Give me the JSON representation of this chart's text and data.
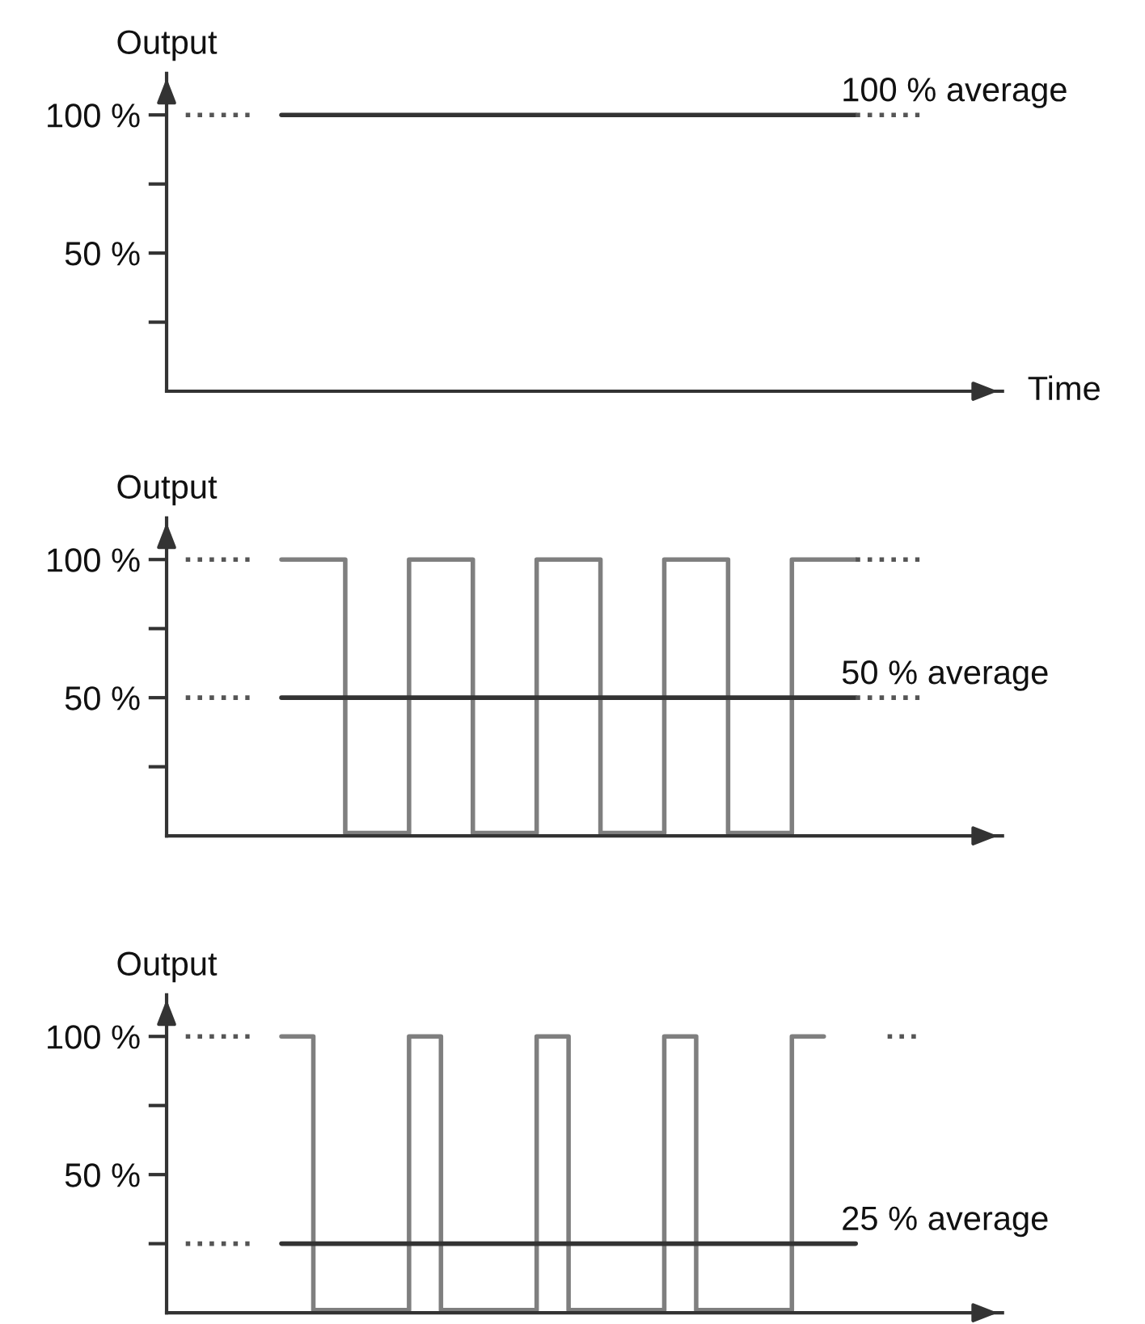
{
  "chart_data": [
    {
      "type": "line",
      "ylabel": "Output",
      "xlabel": "Time",
      "categories": [
        null,
        null,
        null,
        null,
        null,
        null,
        null,
        null,
        null,
        null,
        null,
        null,
        null,
        null,
        null,
        null,
        null,
        null,
        null,
        null,
        null,
        null,
        null,
        null
      ],
      "ylim": [
        0,
        115
      ],
      "yticks": [
        {
          "value": 25,
          "label": null
        },
        {
          "value": 50,
          "label": "50 %"
        },
        {
          "value": 75,
          "label": null
        },
        {
          "value": 100,
          "label": "100 %"
        }
      ],
      "tick_labels": "y",
      "grid": false,
      "series": [
        {
          "color": "#333333",
          "values": [
            null,
            null,
            null,
            100,
            100,
            100,
            100,
            100,
            100,
            100,
            100,
            100,
            100,
            100,
            100,
            100,
            100,
            100,
            100,
            100,
            100,
            100,
            null,
            null
          ]
        },
        {
          "color": "#555555",
          "line_style": "dotted",
          "values": [
            100,
            100,
            100,
            null,
            null,
            null,
            null,
            null,
            null,
            null,
            null,
            null,
            null,
            null,
            null,
            null,
            null,
            null,
            null,
            null,
            null,
            null,
            null,
            null
          ]
        },
        {
          "color": "#555555",
          "line_style": "dotted",
          "values": [
            null,
            null,
            null,
            null,
            null,
            null,
            null,
            null,
            null,
            null,
            null,
            null,
            null,
            null,
            null,
            null,
            null,
            null,
            null,
            null,
            null,
            100,
            100,
            100
          ]
        }
      ],
      "annotations": [
        "100 % average"
      ]
    },
    {
      "type": "line",
      "ylabel": "Output",
      "categories": [
        null,
        null,
        null,
        null,
        null,
        null,
        null,
        null,
        null,
        null,
        null,
        null,
        null,
        null,
        null,
        null,
        null,
        null,
        null,
        null,
        null,
        null,
        null,
        null
      ],
      "ylim": [
        0,
        115
      ],
      "yticks": [
        {
          "value": 25,
          "label": null
        },
        {
          "value": 50,
          "label": "50 %"
        },
        {
          "value": 75,
          "label": null
        },
        {
          "value": 100,
          "label": "100 %"
        }
      ],
      "tick_labels": "y",
      "grid": false,
      "series": [
        {
          "type": "step",
          "color": "#7f7f7f",
          "values": [
            null,
            null,
            null,
            100,
            100,
            1,
            1,
            100,
            100,
            1,
            1,
            100,
            100,
            1,
            1,
            100,
            100,
            1,
            1,
            100,
            100,
            100,
            null,
            null
          ]
        },
        {
          "color": "#333333",
          "values": [
            null,
            null,
            null,
            50,
            50,
            50,
            50,
            50,
            50,
            50,
            50,
            50,
            50,
            50,
            50,
            50,
            50,
            50,
            50,
            50,
            50,
            50,
            null,
            null
          ]
        },
        {
          "color": "#555555",
          "line_style": "dotted",
          "values": [
            100,
            100,
            100,
            null,
            null,
            null,
            null,
            null,
            null,
            null,
            null,
            null,
            null,
            null,
            null,
            null,
            null,
            null,
            null,
            null,
            null,
            null,
            null,
            null
          ]
        },
        {
          "color": "#555555",
          "line_style": "dotted",
          "values": [
            50,
            50,
            50,
            null,
            null,
            null,
            null,
            null,
            null,
            null,
            null,
            null,
            null,
            null,
            null,
            null,
            null,
            null,
            null,
            null,
            null,
            null,
            null,
            null
          ]
        },
        {
          "color": "#555555",
          "line_style": "dotted",
          "values": [
            null,
            null,
            null,
            null,
            null,
            null,
            null,
            null,
            null,
            null,
            null,
            null,
            null,
            null,
            null,
            null,
            null,
            null,
            null,
            null,
            null,
            100,
            100,
            100
          ]
        },
        {
          "color": "#555555",
          "line_style": "dotted",
          "values": [
            null,
            null,
            null,
            null,
            null,
            null,
            null,
            null,
            null,
            null,
            null,
            null,
            null,
            null,
            null,
            null,
            null,
            null,
            null,
            null,
            null,
            50,
            50,
            50
          ]
        }
      ],
      "annotations": [
        "50 % average"
      ]
    },
    {
      "type": "line",
      "ylabel": "Output",
      "categories": [
        null,
        null,
        null,
        null,
        null,
        null,
        null,
        null,
        null,
        null,
        null,
        null,
        null,
        null,
        null,
        null,
        null,
        null,
        null,
        null,
        null,
        null,
        null,
        null
      ],
      "ylim": [
        0,
        115
      ],
      "yticks": [
        {
          "value": 25,
          "label": null
        },
        {
          "value": 50,
          "label": "50 %"
        },
        {
          "value": 75,
          "label": null
        },
        {
          "value": 100,
          "label": "100 %"
        }
      ],
      "tick_labels": "y",
      "grid": false,
      "series": [
        {
          "type": "step",
          "color": "#7f7f7f",
          "values": [
            null,
            null,
            null,
            100,
            1,
            1,
            1,
            100,
            1,
            1,
            1,
            100,
            1,
            1,
            1,
            100,
            1,
            1,
            1,
            100,
            100,
            null,
            null,
            null
          ]
        },
        {
          "color": "#333333",
          "values": [
            null,
            null,
            null,
            25,
            25,
            25,
            25,
            25,
            25,
            25,
            25,
            25,
            25,
            25,
            25,
            25,
            25,
            25,
            25,
            25,
            25,
            25,
            null,
            null
          ]
        },
        {
          "color": "#555555",
          "line_style": "dotted",
          "values": [
            100,
            100,
            100,
            null,
            null,
            null,
            null,
            null,
            null,
            null,
            null,
            null,
            null,
            null,
            null,
            null,
            null,
            null,
            null,
            null,
            null,
            null,
            null,
            null
          ]
        },
        {
          "color": "#555555",
          "line_style": "dotted",
          "values": [
            25,
            25,
            25,
            null,
            null,
            null,
            null,
            null,
            null,
            null,
            null,
            null,
            null,
            null,
            null,
            null,
            null,
            null,
            null,
            null,
            null,
            null,
            null,
            null
          ]
        },
        {
          "color": "#555555",
          "line_style": "dotted",
          "values": [
            null,
            null,
            null,
            null,
            null,
            null,
            null,
            null,
            null,
            null,
            null,
            null,
            null,
            null,
            null,
            null,
            null,
            null,
            null,
            null,
            null,
            null,
            100,
            100
          ]
        }
      ],
      "annotations": [
        "25 % average"
      ]
    }
  ]
}
